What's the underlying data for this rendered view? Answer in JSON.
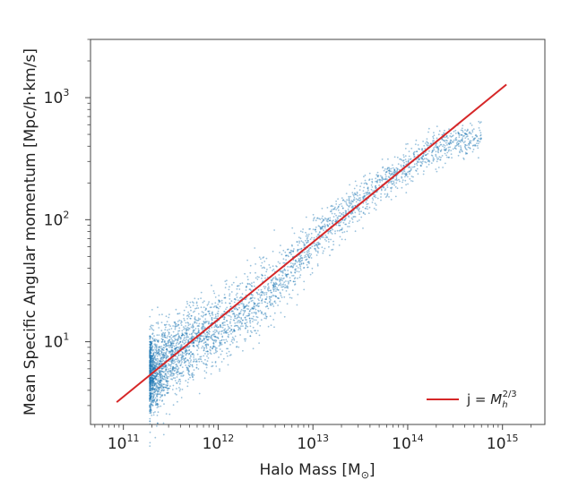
{
  "chart_data": {
    "type": "scatter",
    "xlabel": "Halo Mass [M",
    "xlabel_sub": "⊙",
    "xlabel_end": "]",
    "ylabel": "Mean Specific Angular momentum [Mpc/h·km/s]",
    "xscale": "log",
    "yscale": "log",
    "xlim": [
      45000000000.0,
      2800000000000000.0
    ],
    "ylim": [
      2.1,
      3000
    ],
    "xticks": [
      {
        "value": 100000000000.0,
        "base": "10",
        "exp": "11"
      },
      {
        "value": 1000000000000.0,
        "base": "10",
        "exp": "12"
      },
      {
        "value": 10000000000000.0,
        "base": "10",
        "exp": "13"
      },
      {
        "value": 100000000000000.0,
        "base": "10",
        "exp": "14"
      },
      {
        "value": 1000000000000000.0,
        "base": "10",
        "exp": "15"
      }
    ],
    "yticks": [
      {
        "value": 10,
        "base": "10",
        "exp": "1"
      },
      {
        "value": 100,
        "base": "10",
        "exp": "2"
      },
      {
        "value": 1000,
        "base": "10",
        "exp": "3"
      }
    ],
    "grid": false,
    "legend_position": "lower-right",
    "point_color": "#1f77b4",
    "line_color": "#d62728",
    "scatter_ridge": [
      {
        "x": 220000000000.0,
        "y": 5.5
      },
      {
        "x": 500000000000.0,
        "y": 9.5
      },
      {
        "x": 1000000000000.0,
        "y": 13
      },
      {
        "x": 2000000000000.0,
        "y": 18
      },
      {
        "x": 5000000000000.0,
        "y": 35
      },
      {
        "x": 10000000000000.0,
        "y": 65
      },
      {
        "x": 30000000000000.0,
        "y": 140
      },
      {
        "x": 100000000000000.0,
        "y": 280
      },
      {
        "x": 300000000000000.0,
        "y": 450
      }
    ],
    "series": [
      {
        "type": "line",
        "legend_main": "j = ",
        "legend_symbol": "M",
        "legend_sub": "h",
        "legend_sup": "2/3",
        "x": [
          85000000000.0,
          1100000000000000.0
        ],
        "y": [
          3.2,
          1280
        ]
      }
    ]
  }
}
